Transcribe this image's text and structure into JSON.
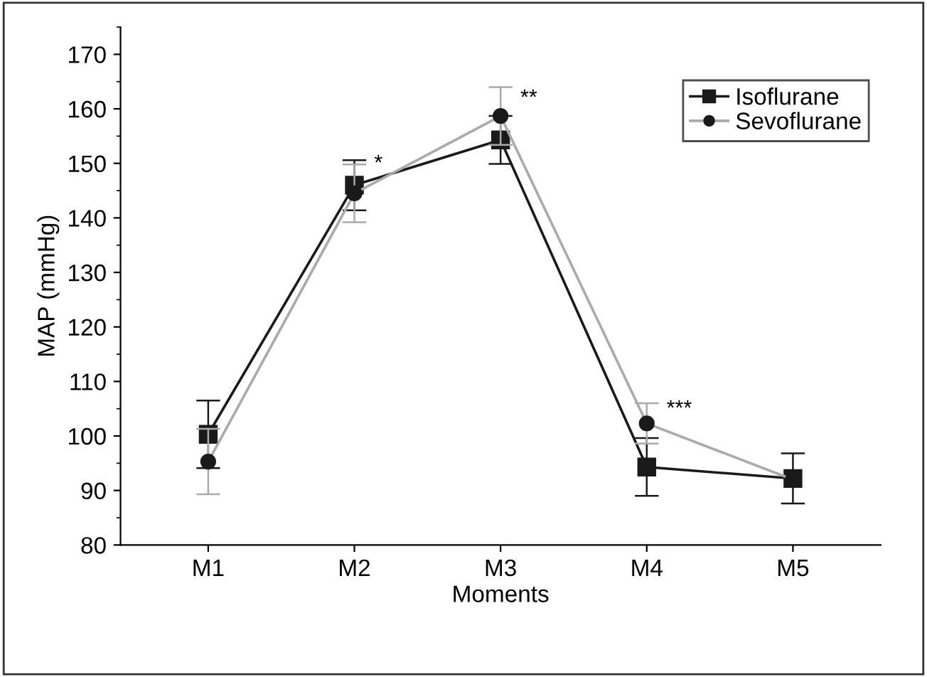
{
  "chart_data": {
    "type": "line",
    "xlabel": "Moments",
    "ylabel": "MAP (mmHg)",
    "categories": [
      "M1",
      "M2",
      "M3",
      "M4",
      "M5"
    ],
    "series": [
      {
        "name": "Isoflurane",
        "color": "#1a1a1a",
        "marker": "square",
        "values": [
          100.3,
          146,
          154.3,
          94.3,
          92.2
        ],
        "errors": [
          6.2,
          4.6,
          4.4,
          5.3,
          4.6
        ]
      },
      {
        "name": "Sevoflurane",
        "color": "#aaaaaa",
        "marker": "circle",
        "values": [
          95.3,
          144.5,
          158.7,
          102.3,
          92
        ],
        "errors": [
          6,
          5.3,
          5.3,
          3.7,
          null
        ]
      }
    ],
    "ylim": [
      80,
      175
    ],
    "yticks": [
      80,
      90,
      100,
      110,
      120,
      130,
      140,
      150,
      160,
      170
    ],
    "annotations": [
      {
        "text": "*",
        "x": "M2",
        "y": 148
      },
      {
        "text": "**",
        "x": "M3",
        "y": 160
      },
      {
        "text": "***",
        "x": "M4",
        "y": 103
      }
    ],
    "legend": "top right",
    "grid": false,
    "line_style": "solid"
  }
}
